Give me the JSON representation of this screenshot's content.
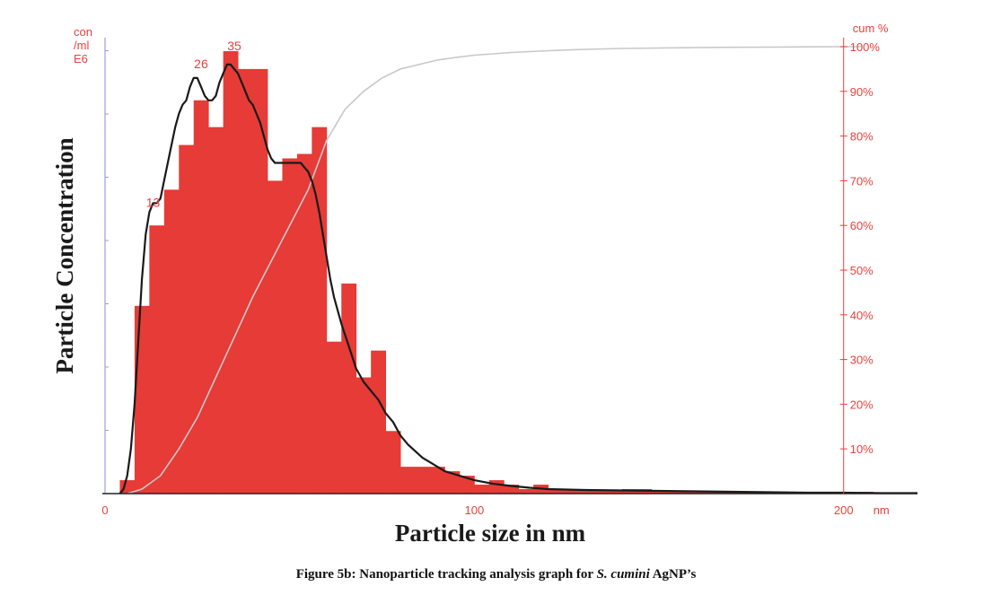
{
  "chart_data": {
    "type": "bar",
    "xlabel": "Particle size in nm",
    "ylabel": "Particle Concentration",
    "left_unit_lines": [
      "con",
      "/ml",
      "E6"
    ],
    "right_unit": "cum %",
    "x_unit": "nm",
    "xlim": [
      0,
      220
    ],
    "ylim": [
      0,
      100
    ],
    "x_ticks": [
      {
        "value": 0,
        "label": "0"
      },
      {
        "value": 100,
        "label": "100"
      },
      {
        "value": 200,
        "label": "200"
      }
    ],
    "right_ticks": [
      {
        "value": 10,
        "label": "10%"
      },
      {
        "value": 20,
        "label": "20%"
      },
      {
        "value": 30,
        "label": "30%"
      },
      {
        "value": 40,
        "label": "40%"
      },
      {
        "value": 50,
        "label": "50%"
      },
      {
        "value": 60,
        "label": "60%"
      },
      {
        "value": 70,
        "label": "70%"
      },
      {
        "value": 80,
        "label": "80%"
      },
      {
        "value": 90,
        "label": "90%"
      },
      {
        "value": 100,
        "label": "100%"
      }
    ],
    "bar_color": "#e63b36",
    "bar_width": 4,
    "bars_x": [
      4,
      8,
      12,
      16,
      20,
      24,
      28,
      32,
      36,
      40,
      44,
      48,
      52,
      56,
      60,
      64,
      68,
      72,
      76,
      80,
      84,
      88,
      92,
      96,
      100,
      104,
      108,
      112,
      116,
      120,
      124,
      128,
      132,
      136,
      140,
      144,
      148,
      152,
      156,
      160,
      164,
      168,
      172,
      176,
      180,
      184,
      188,
      192,
      196,
      200,
      204,
      208
    ],
    "bars_y": [
      3,
      42,
      60,
      68,
      78,
      88,
      82,
      99,
      95,
      95,
      70,
      75,
      76,
      82,
      34,
      47,
      26,
      32,
      14,
      6,
      6,
      6,
      5,
      4,
      2,
      3,
      2,
      1,
      2,
      0.8,
      0.8,
      0.8,
      0.8,
      0.8,
      1,
      1,
      0.5,
      0.5,
      0.4,
      0.4,
      0.4,
      0.4,
      0.4,
      0.4,
      0.2,
      0.2,
      0.2,
      0.2,
      0.2,
      0.2,
      0.4,
      0.2
    ],
    "concentration_curve": {
      "color": "#1a1a1a",
      "x": [
        4,
        5,
        6,
        7,
        8,
        9,
        10,
        11,
        12,
        13,
        14,
        15,
        16,
        17,
        18,
        19,
        20,
        21,
        22,
        23,
        24,
        25,
        26,
        27,
        28,
        29,
        30,
        31,
        32,
        33,
        34,
        35,
        36,
        37,
        38,
        39,
        40,
        41,
        42,
        43,
        44,
        45,
        46,
        47,
        48,
        49,
        50,
        51,
        52,
        53,
        54,
        55,
        56,
        57,
        58,
        59,
        60,
        61,
        62,
        64,
        66,
        68,
        70,
        72,
        74,
        76,
        78,
        80,
        82,
        84,
        86,
        88,
        90,
        92,
        94,
        96,
        98,
        100,
        105,
        110,
        115,
        120,
        130,
        140,
        150,
        160,
        170,
        180,
        190,
        200,
        210,
        220
      ],
      "y": [
        0,
        1,
        4,
        10,
        20,
        34,
        48,
        58,
        63,
        65,
        65,
        66,
        70,
        74,
        78,
        82,
        85,
        87,
        88,
        91,
        93,
        93,
        91,
        89,
        88,
        88,
        89,
        92,
        94,
        96,
        96,
        95,
        94,
        92,
        90,
        88,
        87,
        85,
        83,
        80,
        77,
        75,
        74,
        74,
        74,
        74,
        74,
        74,
        74,
        74,
        73,
        72,
        70,
        67,
        63,
        58,
        53,
        48,
        44,
        38,
        33,
        28,
        25,
        23,
        21,
        18,
        16,
        13,
        11,
        9.5,
        8,
        7,
        6,
        5,
        4.5,
        4,
        3.5,
        3,
        2.2,
        1.7,
        1.3,
        1,
        0.8,
        0.7,
        0.6,
        0.5,
        0.4,
        0.3,
        0.2,
        0.2,
        0.1,
        0.1
      ]
    },
    "cumulative_curve": {
      "color": "#c8c8c8",
      "x": [
        6,
        10,
        15,
        20,
        25,
        30,
        35,
        40,
        45,
        50,
        55,
        60,
        65,
        70,
        75,
        80,
        85,
        90,
        95,
        100,
        110,
        120,
        130,
        140,
        150,
        160,
        170,
        180,
        190,
        200,
        205
      ],
      "y": [
        0,
        1,
        4,
        10,
        17,
        26,
        35,
        44,
        52,
        60,
        68,
        79,
        86,
        90,
        93,
        95,
        96,
        97,
        97.6,
        98.1,
        98.7,
        99.1,
        99.4,
        99.6,
        99.7,
        99.8,
        99.85,
        99.9,
        99.95,
        100,
        100
      ]
    },
    "peak_labels": [
      {
        "x": 13,
        "y": 63,
        "label": "13"
      },
      {
        "x": 26,
        "y": 94,
        "label": "26"
      },
      {
        "x": 35,
        "y": 98,
        "label": "35"
      }
    ]
  },
  "caption": {
    "prefix": "Figure 5b: Nanoparticle tracking analysis graph for ",
    "species": "S. cumini",
    "suffix": " AgNP’s"
  }
}
